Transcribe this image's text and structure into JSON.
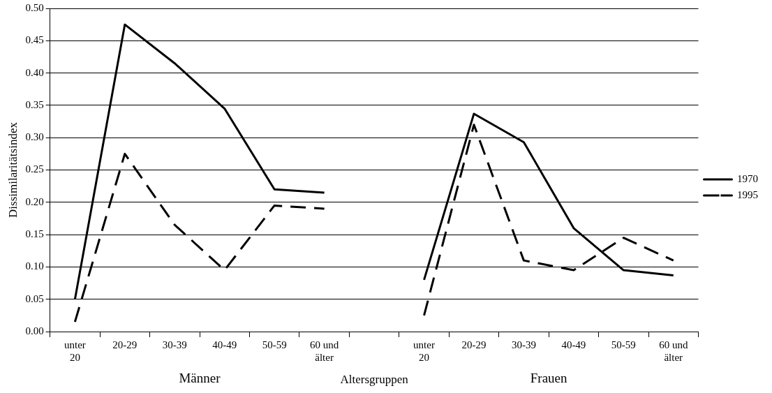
{
  "chart_data": {
    "type": "line",
    "xlabel": "Altersgruppen",
    "ylabel": "Dissimilaritätsindex",
    "categories": [
      "unter 20",
      "20-29",
      "30-39",
      "40-49",
      "50-59",
      "60 und älter",
      null,
      "unter 20",
      "20-29",
      "30-39",
      "40-49",
      "50-59",
      "60 und älter"
    ],
    "series": [
      {
        "name": "1970",
        "color": "#000000",
        "line_style": "solid",
        "values": [
          0.05,
          0.475,
          0.415,
          0.345,
          0.22,
          0.215,
          null,
          0.08,
          0.337,
          0.293,
          0.16,
          0.095,
          0.087
        ]
      },
      {
        "name": "1995",
        "color": "#000000",
        "line_style": "dashed",
        "values": [
          0.015,
          0.275,
          0.165,
          0.095,
          0.195,
          0.19,
          null,
          0.025,
          0.32,
          0.11,
          0.095,
          0.145,
          0.11
        ]
      }
    ],
    "ylim": [
      0,
      0.5
    ],
    "yticks": [
      {
        "value": 0,
        "label": "0.00"
      },
      {
        "value": 0.05,
        "label": "0.05"
      },
      {
        "value": 0.1,
        "label": "0.10"
      },
      {
        "value": 0.15,
        "label": "0.15"
      },
      {
        "value": 0.2,
        "label": "0.20"
      },
      {
        "value": 0.25,
        "label": "0.25"
      },
      {
        "value": 0.3,
        "label": "0.30"
      },
      {
        "value": 0.35,
        "label": "0.35"
      },
      {
        "value": 0.4,
        "label": "0.40"
      },
      {
        "value": 0.45,
        "label": "0.45"
      },
      {
        "value": 0.5,
        "label": "0.50"
      }
    ],
    "grid": "y",
    "legend": "right",
    "marker": "none",
    "annotations": [
      "Männer",
      "Frauen"
    ]
  }
}
